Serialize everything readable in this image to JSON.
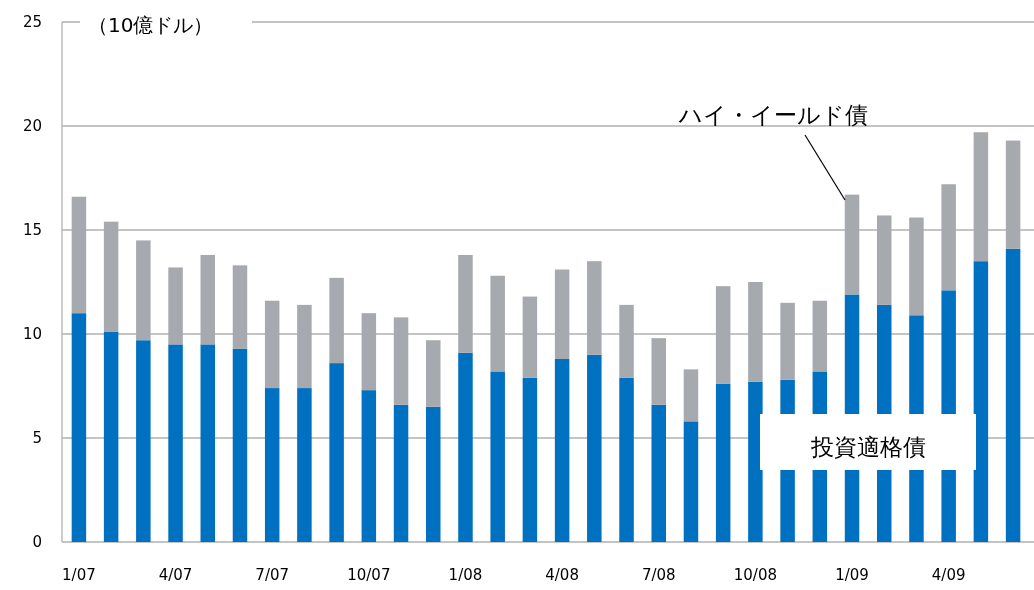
{
  "chart_data": {
    "type": "bar",
    "stacked": true,
    "ylabel": "（10億ドル）",
    "categories": [
      "1/07",
      null,
      null,
      "4/07",
      null,
      null,
      "7/07",
      null,
      null,
      "10/07",
      null,
      null,
      "1/08",
      null,
      null,
      "4/08",
      null,
      null,
      "7/08",
      null,
      null,
      "10/08",
      null,
      null,
      "1/09",
      null,
      null,
      "4/09",
      null,
      null
    ],
    "series": [
      {
        "name": "投資適格債",
        "color": "#0070c0",
        "values": [
          11.0,
          10.1,
          9.7,
          9.5,
          9.5,
          9.3,
          7.4,
          7.4,
          8.6,
          7.3,
          6.6,
          6.5,
          9.1,
          8.2,
          7.9,
          8.8,
          9.0,
          7.9,
          6.6,
          5.8,
          7.6,
          7.7,
          7.8,
          8.2,
          11.9,
          11.4,
          10.9,
          12.1,
          13.5,
          14.1
        ]
      },
      {
        "name": "ハイ・イールド債",
        "color": "#a6a9ad",
        "values": [
          5.6,
          5.3,
          4.8,
          3.7,
          4.3,
          4.0,
          4.2,
          4.0,
          4.1,
          3.7,
          4.2,
          3.2,
          4.7,
          4.6,
          3.9,
          4.3,
          4.5,
          3.5,
          3.2,
          2.5,
          4.7,
          4.8,
          3.7,
          3.4,
          4.8,
          4.3,
          4.7,
          5.1,
          6.2,
          5.2
        ]
      }
    ],
    "ylim": [
      0,
      25
    ],
    "yticks": [
      0,
      5,
      10,
      15,
      20,
      25
    ],
    "grid": "y"
  }
}
